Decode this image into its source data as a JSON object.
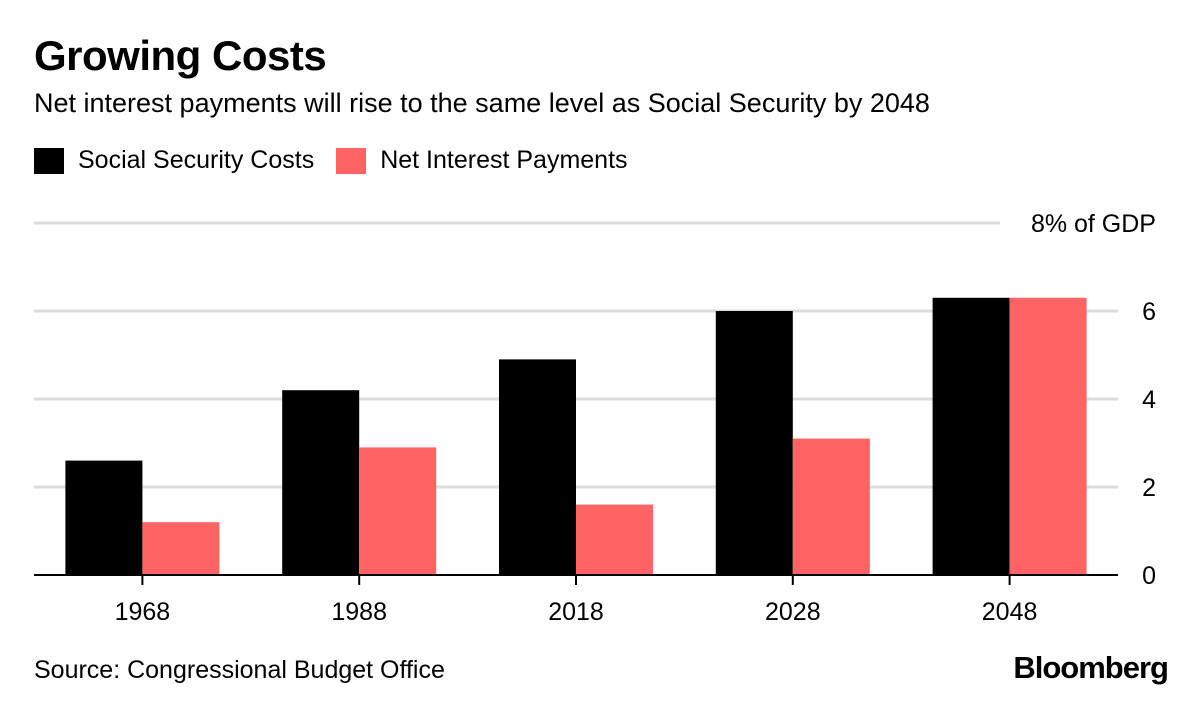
{
  "chart_data": {
    "type": "bar",
    "title": "Growing Costs",
    "subtitle": "Net interest payments will rise to the same level as Social Security by 2048",
    "categories": [
      "1968",
      "1988",
      "2018",
      "2028",
      "2048"
    ],
    "series": [
      {
        "name": "Social Security Costs",
        "color": "#000000",
        "values": [
          2.6,
          4.2,
          4.9,
          6.0,
          6.3
        ]
      },
      {
        "name": "Net Interest Payments",
        "color": "#ff6363",
        "values": [
          1.2,
          2.9,
          1.6,
          3.1,
          6.3
        ]
      }
    ],
    "ylim": [
      0,
      8
    ],
    "yticks": [
      0,
      2,
      4,
      6,
      8
    ],
    "ytick_labels": [
      "0",
      "2",
      "4",
      "6",
      "8% of GDP"
    ],
    "yaxis_position": "right",
    "grid": true,
    "legend_position": "top-left"
  },
  "source": "Source: Congressional Budget Office",
  "logo": "Bloomberg"
}
